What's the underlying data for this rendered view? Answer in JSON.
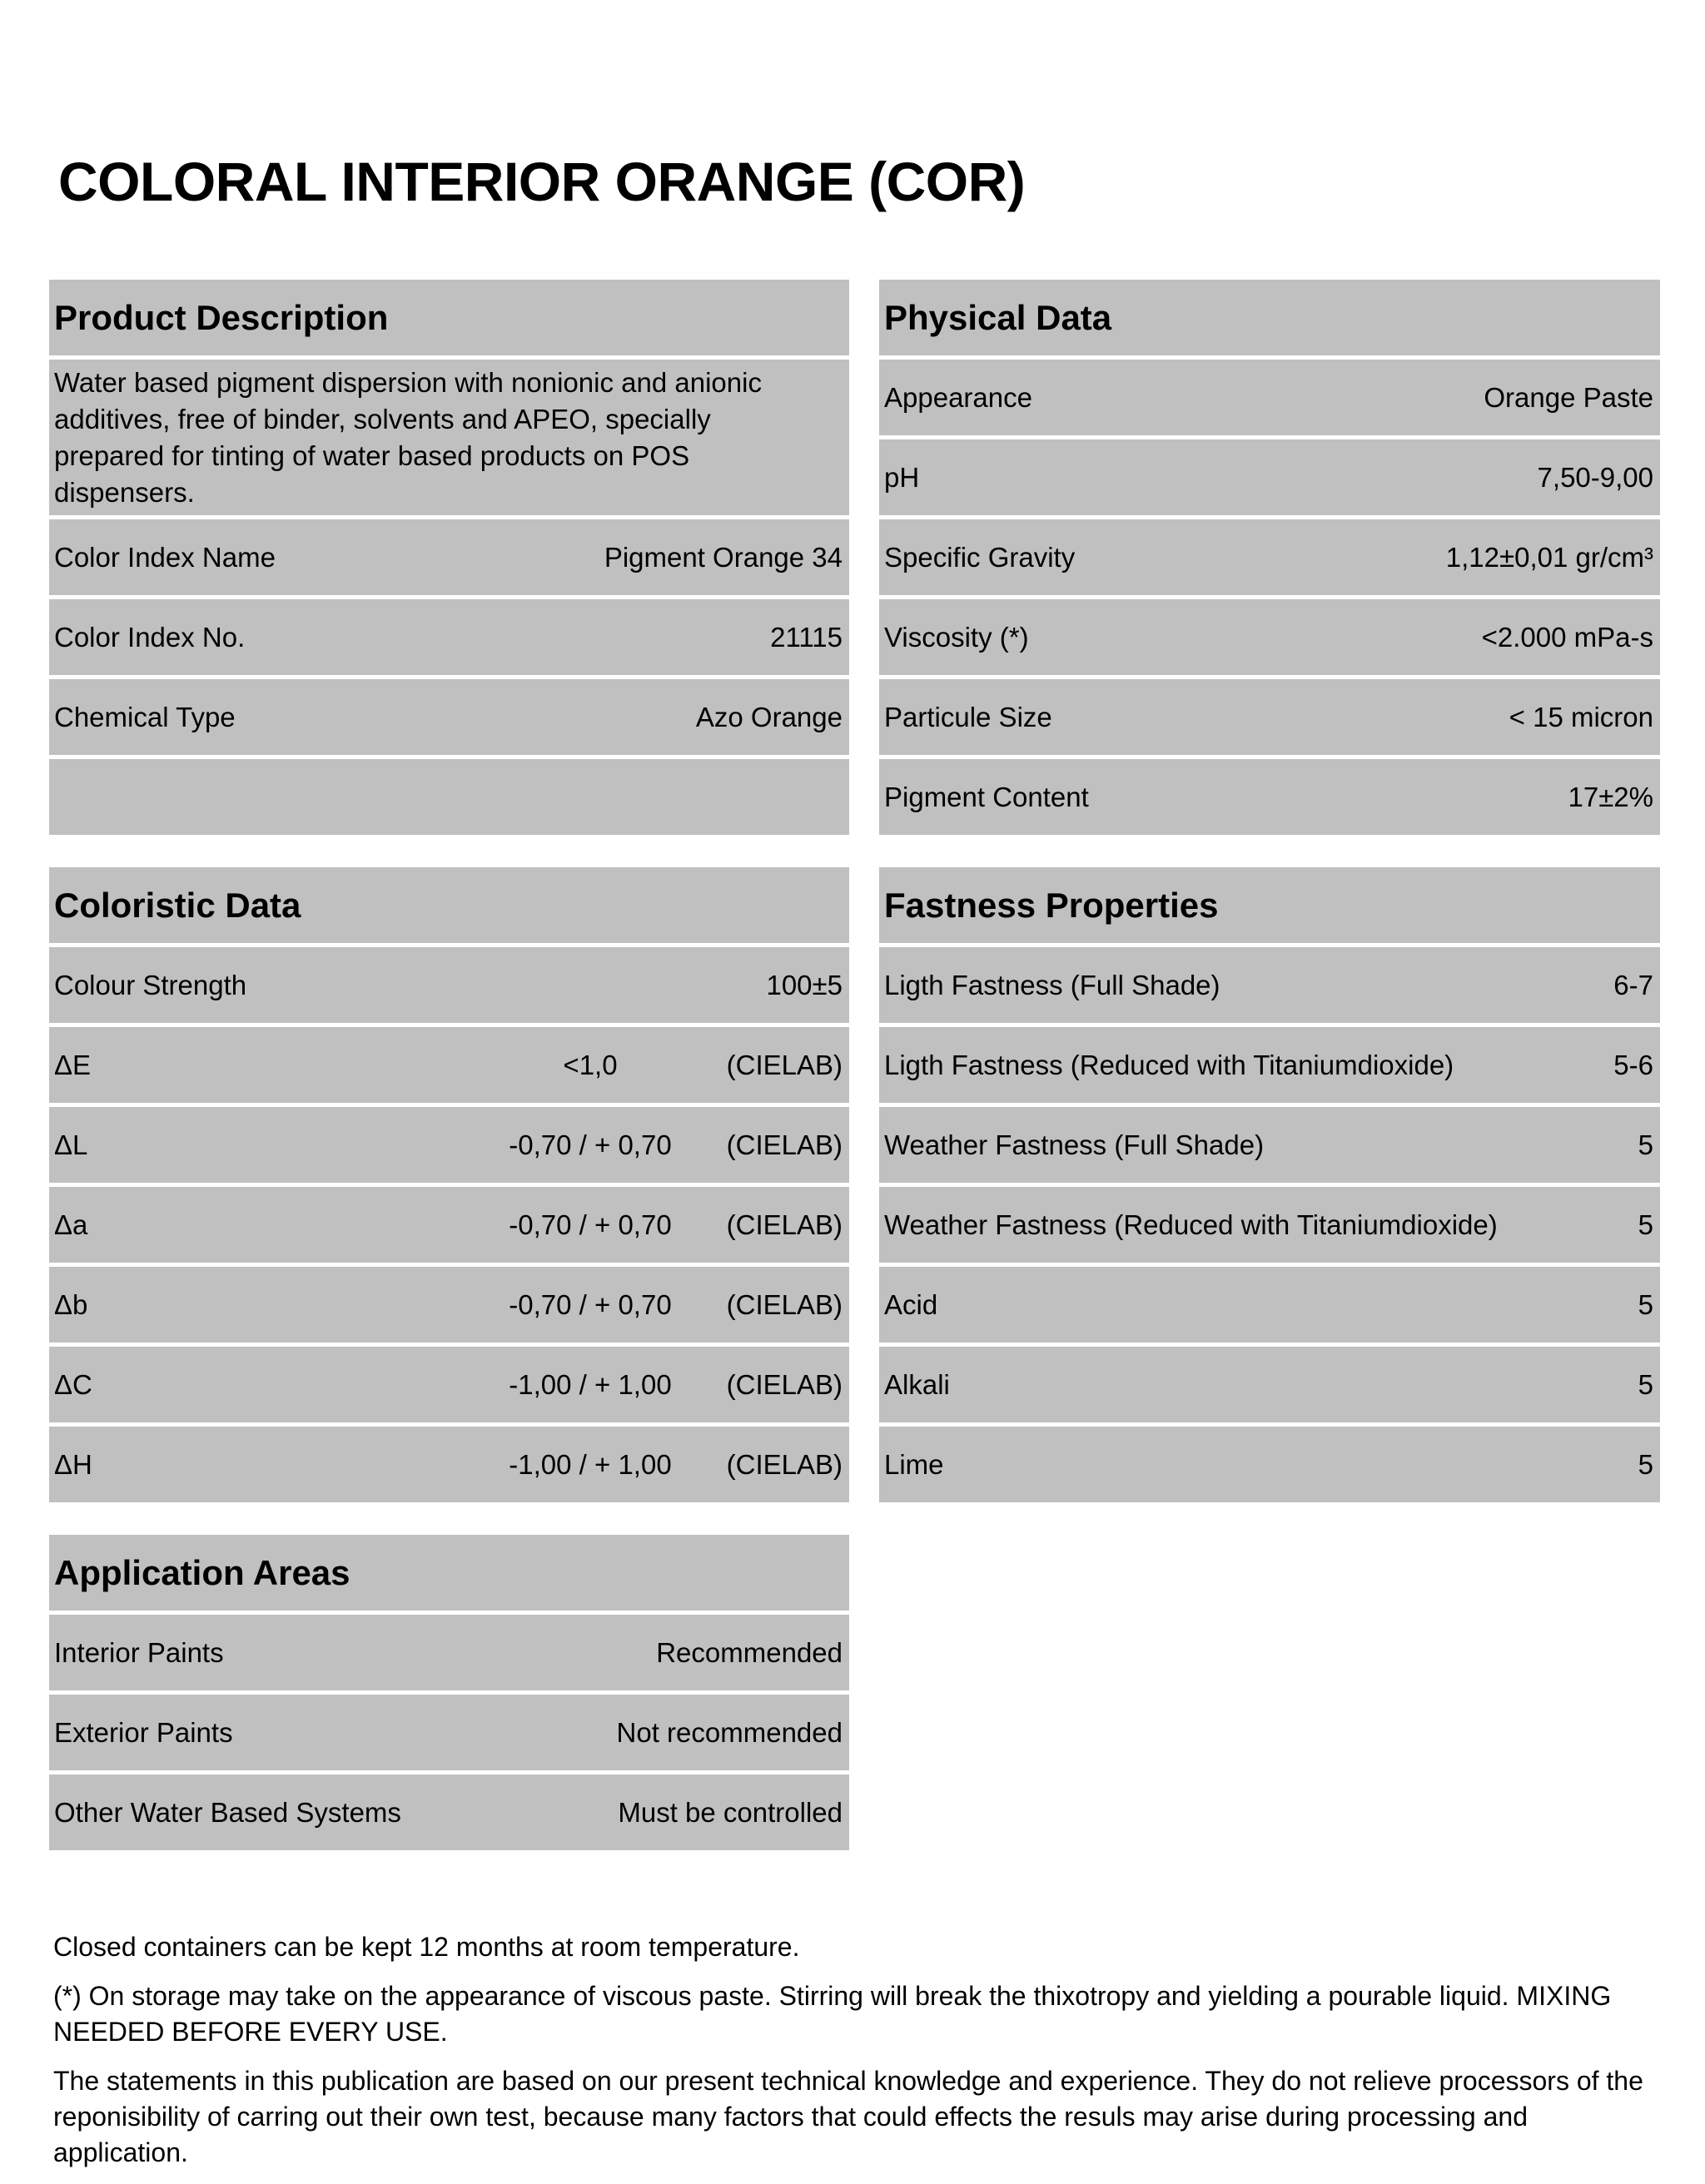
{
  "title": "COLORAL INTERIOR ORANGE (COR)",
  "product_description": {
    "header": "Product Description",
    "description": "Water based pigment dispersion with nonionic and anionic additives, free of binder, solvents and APEO, specially prepared for tinting of water based products on POS dispensers.",
    "rows": [
      {
        "label": "Color Index Name",
        "value": "Pigment Orange 34"
      },
      {
        "label": "Color Index No.",
        "value": "21115"
      },
      {
        "label": "Chemical Type",
        "value": "Azo Orange"
      }
    ]
  },
  "physical_data": {
    "header": "Physical Data",
    "rows": [
      {
        "label": "Appearance",
        "value": "Orange Paste"
      },
      {
        "label": "pH",
        "value": "7,50-9,00"
      },
      {
        "label": "Specific Gravity",
        "value": "1,12±0,01 gr/cm³"
      },
      {
        "label": "Viscosity (*)",
        "value": "<2.000 mPa-s"
      },
      {
        "label": "Particule Size",
        "value": "< 15 micron"
      },
      {
        "label": "Pigment Content",
        "value": "17±2%"
      }
    ]
  },
  "coloristic_data": {
    "header": "Coloristic Data",
    "strength": {
      "label": "Colour Strength",
      "value": "100±5"
    },
    "rows": [
      {
        "label": "ΔE",
        "value": "<1,0",
        "unit": "(CIELAB)"
      },
      {
        "label": "ΔL",
        "value": "-0,70 / + 0,70",
        "unit": "(CIELAB)"
      },
      {
        "label": "Δa",
        "value": "-0,70 / + 0,70",
        "unit": "(CIELAB)"
      },
      {
        "label": "Δb",
        "value": "-0,70 / + 0,70",
        "unit": "(CIELAB)"
      },
      {
        "label": "ΔC",
        "value": "-1,00 / + 1,00",
        "unit": "(CIELAB)"
      },
      {
        "label": "ΔH",
        "value": "-1,00 / + 1,00",
        "unit": "(CIELAB)"
      }
    ]
  },
  "fastness_properties": {
    "header": "Fastness Properties",
    "rows": [
      {
        "label": "Ligth Fastness (Full Shade)",
        "value": "6-7"
      },
      {
        "label": "Ligth Fastness (Reduced with Titaniumdioxide)",
        "value": "5-6"
      },
      {
        "label": "Weather Fastness (Full Shade)",
        "value": "5"
      },
      {
        "label": "Weather Fastness (Reduced with Titaniumdioxide)",
        "value": "5"
      },
      {
        "label": "Acid",
        "value": "5"
      },
      {
        "label": "Alkali",
        "value": "5"
      },
      {
        "label": "Lime",
        "value": "5"
      }
    ]
  },
  "application_areas": {
    "header": "Application Areas",
    "rows": [
      {
        "label": "Interior Paints",
        "value": "Recommended"
      },
      {
        "label": "Exterior Paints",
        "value": "Not recommended"
      },
      {
        "label": "Other Water Based Systems",
        "value": "Must be controlled"
      }
    ]
  },
  "notes": [
    "Closed containers can be kept 12 months at room temperature.",
    "(*) On storage may take on the appearance of viscous paste. Stirring will break the thixotropy and yielding a pourable liquid. MIXING NEEDED BEFORE EVERY USE.",
    "The statements in this publication are based on our present technical knowledge and experience. They do not relieve processors of the reponisibility of carring out their own test, because many factors that could effects the resuls may arise during processing and application."
  ],
  "colors": {
    "cell_background": "#c0c0c0",
    "text": "#000000"
  }
}
